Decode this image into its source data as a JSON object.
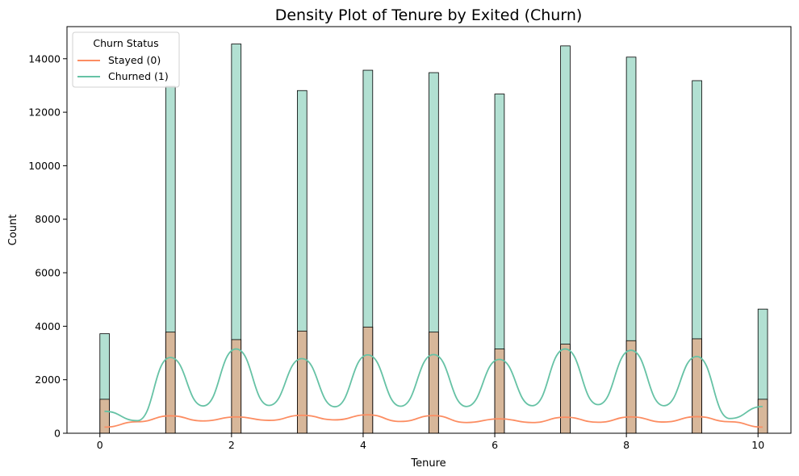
{
  "chart_data": {
    "type": "bar",
    "title": "Density Plot of Tenure by Exited (Churn)",
    "xlabel": "Tenure",
    "ylabel": "Count",
    "xlim": [
      -0.5,
      10.5
    ],
    "ylim": [
      0,
      15200
    ],
    "xticks": [
      0,
      2,
      4,
      6,
      8,
      10
    ],
    "yticks": [
      0,
      2000,
      4000,
      6000,
      8000,
      10000,
      12000,
      14000
    ],
    "categories": [
      0,
      1,
      2,
      3,
      4,
      5,
      6,
      7,
      8,
      9,
      10
    ],
    "series": [
      {
        "name": "Stayed (0)",
        "color": "#fc8d62",
        "values": [
          1270,
          3780,
          3500,
          3820,
          3970,
          3780,
          3150,
          3330,
          3460,
          3530,
          1270
        ]
      },
      {
        "name": "Churned (1)",
        "color": "#66c2a5",
        "values": [
          3720,
          12970,
          14550,
          12810,
          13570,
          13480,
          12680,
          14480,
          14060,
          13180,
          4640
        ]
      }
    ],
    "kde": [
      {
        "series": "Stayed (0)",
        "peaks": [
          230,
          650,
          610,
          670,
          690,
          660,
          540,
          600,
          610,
          620,
          230
        ],
        "troughs": [
          430,
          460,
          480,
          500,
          440,
          400,
          400,
          410,
          420,
          430
        ]
      },
      {
        "series": "Churned (1)",
        "peaks": [
          820,
          2830,
          3150,
          2790,
          2930,
          2940,
          2760,
          3150,
          3100,
          2870,
          1000
        ],
        "troughs": [
          470,
          1020,
          1040,
          990,
          1010,
          1000,
          1030,
          1070,
          1030,
          550
        ]
      }
    ],
    "legend": {
      "title": "Churn Status",
      "position": "top-left"
    },
    "grid": false
  }
}
